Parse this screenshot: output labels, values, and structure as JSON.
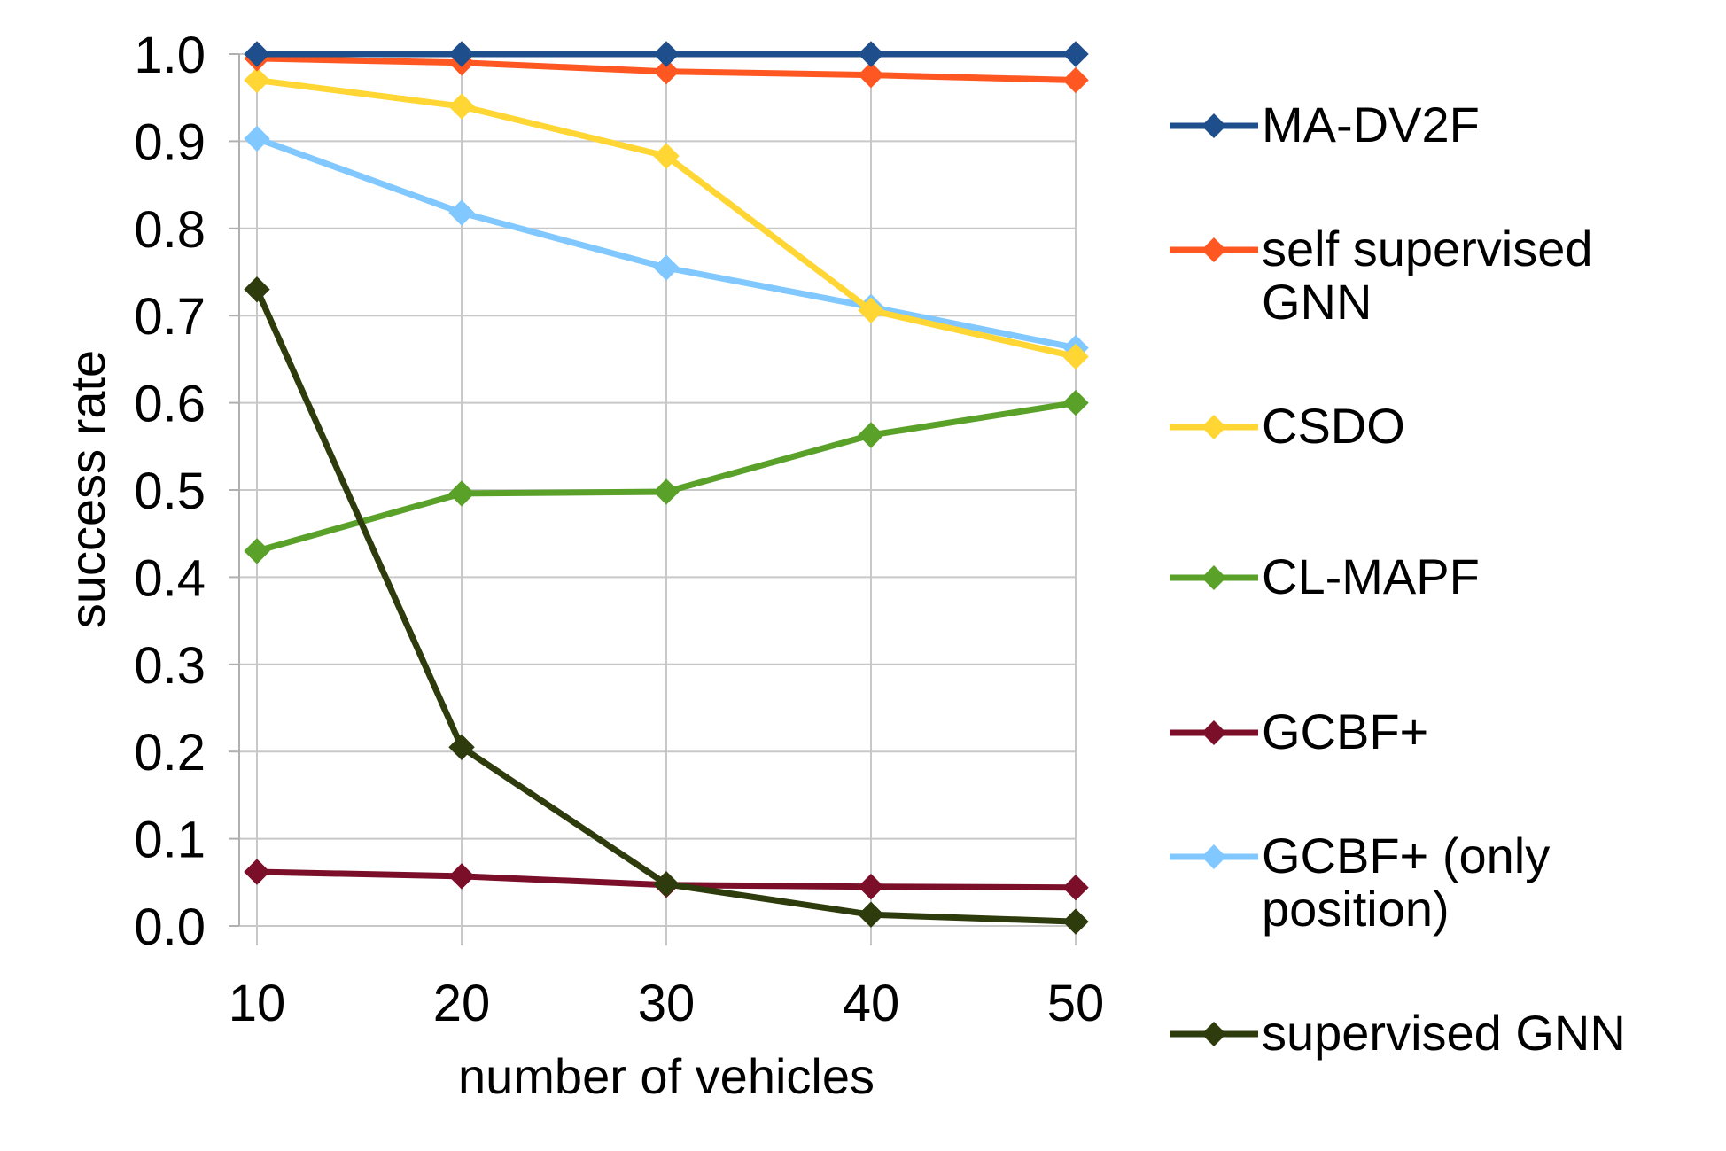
{
  "chart_data": {
    "type": "line",
    "xlabel": "number of vehicles",
    "ylabel": "success rate",
    "x": [
      10,
      20,
      30,
      40,
      50
    ],
    "xlim": [
      10,
      50
    ],
    "ylim": [
      0.0,
      1.0
    ],
    "yticks": [
      "0.0",
      "0.1",
      "0.2",
      "0.3",
      "0.4",
      "0.5",
      "0.6",
      "0.7",
      "0.8",
      "0.9",
      "1.0"
    ],
    "xticks": [
      "10",
      "20",
      "30",
      "40",
      "50"
    ],
    "grid": "horizontal",
    "legend_position": "right",
    "series": [
      {
        "name": "MA-DV2F",
        "legend_lines": [
          "MA-DV2F"
        ],
        "color": "#1f4e8c",
        "values": [
          1.0,
          1.0,
          1.0,
          1.0,
          1.0
        ]
      },
      {
        "name": "self supervised GNN",
        "legend_lines": [
          "self supervised",
          "GNN"
        ],
        "color": "#ff5722",
        "values": [
          0.995,
          0.99,
          0.98,
          0.976,
          0.97
        ]
      },
      {
        "name": "CSDO",
        "legend_lines": [
          "CSDO"
        ],
        "color": "#ffd633",
        "values": [
          0.97,
          0.94,
          0.883,
          0.706,
          0.653
        ]
      },
      {
        "name": "CL-MAPF",
        "legend_lines": [
          "CL-MAPF"
        ],
        "color": "#5aa12a",
        "values": [
          0.43,
          0.496,
          0.498,
          0.563,
          0.6
        ]
      },
      {
        "name": "GCBF+",
        "legend_lines": [
          "GCBF+"
        ],
        "color": "#7b0f2a",
        "values": [
          0.062,
          0.057,
          0.047,
          0.045,
          0.044
        ]
      },
      {
        "name": "GCBF+ (only position)",
        "legend_lines": [
          "GCBF+ (only",
          "position)"
        ],
        "color": "#80c8ff",
        "values": [
          0.903,
          0.818,
          0.755,
          0.71,
          0.663
        ]
      },
      {
        "name": "supervised GNN",
        "legend_lines": [
          "supervised GNN"
        ],
        "color": "#2e3b0c",
        "values": [
          0.73,
          0.205,
          0.048,
          0.013,
          0.005
        ]
      }
    ]
  }
}
